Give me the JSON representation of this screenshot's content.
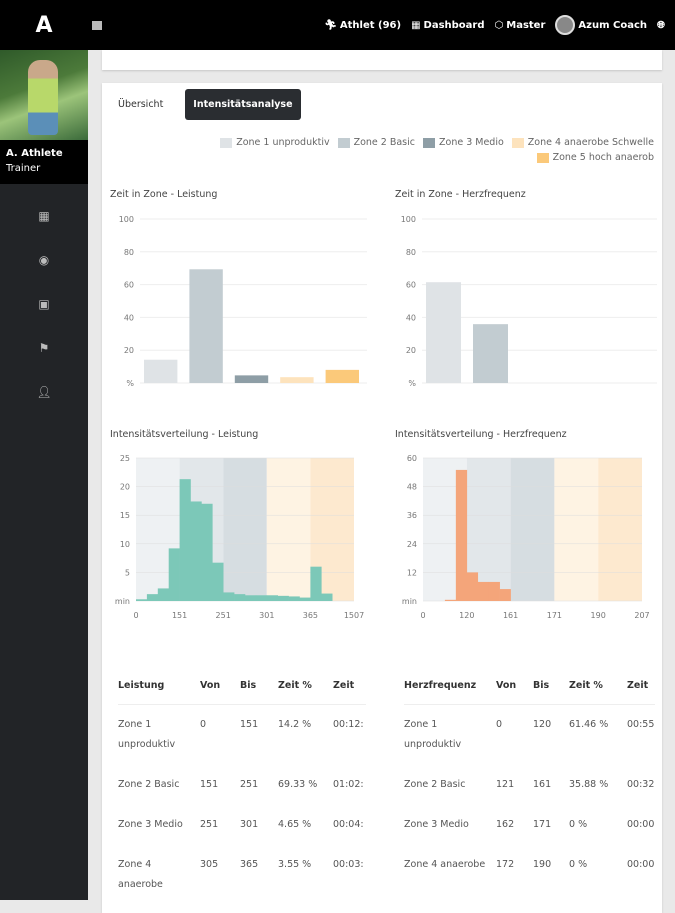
{
  "app": {
    "logo": "A"
  },
  "sidebar": {
    "user_name": "A. Athlete",
    "user_role": "Trainer",
    "items": [
      {
        "icon": "dashboard-icon"
      },
      {
        "icon": "eye-icon"
      },
      {
        "icon": "calendar-icon"
      },
      {
        "icon": "flag-icon"
      },
      {
        "icon": "user-icon"
      }
    ]
  },
  "topbar": {
    "athlet": "Athlet (96)",
    "dashboard": "Dashboard",
    "master": "Master",
    "coach": "Azum Coach"
  },
  "tabs": [
    {
      "label": "Übersicht",
      "active": false
    },
    {
      "label": "Intensitätsanalyse",
      "active": true
    }
  ],
  "legend": [
    {
      "label": "Zone 1 unproduktiv",
      "color": "#dfe3e6"
    },
    {
      "label": "Zone 2 Basic",
      "color": "#c2ccd1"
    },
    {
      "label": "Zone 3 Medio",
      "color": "#8e9ea6"
    },
    {
      "label": "Zone 4 anaerobe Schwelle",
      "color": "#fde3bd"
    },
    {
      "label": "Zone 5 hoch anaerob",
      "color": "#fbc97a"
    }
  ],
  "chart_data": [
    {
      "type": "bar",
      "title": "Zeit in Zone - Leistung",
      "ylabel": "%",
      "ylim": [
        0,
        100
      ],
      "yticks": [
        "%",
        "20",
        "40",
        "60",
        "80",
        "100"
      ],
      "categories": [
        "Zone 1 unproduktiv",
        "Zone 2 Basic",
        "Zone 3 Medio",
        "Zone 4 anaerobe Schwelle",
        "Zone 5 hoch anaerob"
      ],
      "values": [
        14.2,
        69.33,
        4.65,
        3.55,
        8
      ]
    },
    {
      "type": "bar",
      "title": "Zeit in Zone - Herzfrequenz",
      "ylabel": "%",
      "ylim": [
        0,
        100
      ],
      "yticks": [
        "%",
        "20",
        "40",
        "60",
        "80",
        "100"
      ],
      "categories": [
        "Zone 1 unproduktiv",
        "Zone 2 Basic",
        "Zone 3 Medio",
        "Zone 4 anaerobe Schwelle",
        "Zone 5 hoch anaerob"
      ],
      "values": [
        61.46,
        35.88,
        0,
        0,
        0
      ]
    },
    {
      "type": "bar",
      "title": "Intensitätsverteilung - Leistung",
      "ylabel": "min",
      "ylim": [
        0,
        25
      ],
      "yticks": [
        "min",
        "5",
        "10",
        "15",
        "20",
        "25"
      ],
      "xticks": [
        "0",
        "151",
        "251",
        "301",
        "365",
        "1507"
      ],
      "bins_per_zone": 4,
      "values": [
        0.3,
        1.2,
        2.2,
        9.2,
        21.3,
        17.4,
        17,
        6.7,
        1.5,
        1.2,
        1,
        1,
        1,
        0.9,
        0.8,
        0.6,
        6,
        1.3,
        0,
        0
      ],
      "color": "#7cc8b8"
    },
    {
      "type": "bar",
      "title": "Intensitätsverteilung - Herzfrequenz",
      "ylabel": "min",
      "ylim": [
        0,
        60
      ],
      "yticks": [
        "min",
        "12",
        "24",
        "36",
        "48",
        "60"
      ],
      "xticks": [
        "0",
        "120",
        "161",
        "171",
        "190",
        "207"
      ],
      "bins_per_zone": 4,
      "values": [
        0,
        0,
        0.5,
        55,
        12,
        8,
        8,
        5,
        0,
        0,
        0,
        0,
        0,
        0,
        0,
        0,
        0,
        0,
        0,
        0
      ],
      "color": "#f4a57a"
    }
  ],
  "tables": [
    {
      "headers": [
        "Leistung",
        "Von",
        "Bis",
        "Zeit %",
        "Zeit"
      ],
      "rows": [
        [
          "Zone 1 unproduktiv",
          "0",
          "151",
          "14.2 %",
          "00:12:"
        ],
        [
          "Zone 2 Basic",
          "151",
          "251",
          "69.33 %",
          "01:02:"
        ],
        [
          "Zone 3 Medio",
          "251",
          "301",
          "4.65 %",
          "00:04:"
        ],
        [
          "Zone 4 anaerobe",
          "305",
          "365",
          "3.55 %",
          "00:03:"
        ]
      ]
    },
    {
      "headers": [
        "Herzfrequenz",
        "Von",
        "Bis",
        "Zeit %",
        "Zeit"
      ],
      "rows": [
        [
          "Zone 1 unproduktiv",
          "0",
          "120",
          "61.46 %",
          "00:55"
        ],
        [
          "Zone 2 Basic",
          "121",
          "161",
          "35.88 %",
          "00:32"
        ],
        [
          "Zone 3 Medio",
          "162",
          "171",
          "0 %",
          "00:00"
        ],
        [
          "Zone 4 anaerobe",
          "172",
          "190",
          "0 %",
          "00:00"
        ]
      ]
    }
  ]
}
